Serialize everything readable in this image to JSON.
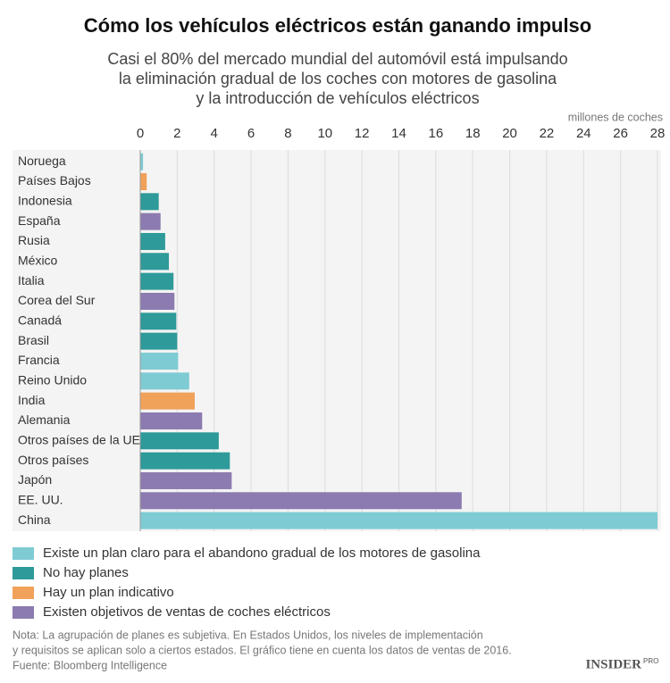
{
  "chart_data": {
    "type": "bar",
    "orientation": "horizontal",
    "title": "Cómo los vehículos eléctricos están ganando impulso",
    "subtitle": [
      "Casi el 80% del mercado mundial del automóvil está impulsando",
      "la eliminación gradual de los coches con motores de gasolina",
      "y la introducción de vehículos eléctricos"
    ],
    "x_label": "millones de coches",
    "categories": [
      "Noruega",
      "Países Bajos",
      "Indonesia",
      "España",
      "Rusia",
      "México",
      "Italia",
      "Corea del Sur",
      "Canadá",
      "Brasil",
      "Francia",
      "Reino Unido",
      "India",
      "Alemania",
      "Otros países de la UE",
      "Otros países",
      "Japón",
      "EE. UU.",
      "China"
    ],
    "series": [
      {
        "name": "Existe un plan claro para el abandono gradual de los motores de gasolina",
        "color": "#7ecbd3",
        "values": [
          0.15,
          null,
          null,
          null,
          null,
          null,
          null,
          null,
          null,
          null,
          2.05,
          2.65,
          null,
          null,
          null,
          null,
          null,
          null,
          28
        ]
      },
      {
        "name": "No hay planes",
        "color": "#2e9a99",
        "values": [
          null,
          null,
          1.0,
          null,
          1.35,
          1.55,
          1.8,
          null,
          1.95,
          2.0,
          null,
          null,
          null,
          null,
          4.25,
          4.85,
          null,
          null,
          null
        ]
      },
      {
        "name": "Hay un plan indicativo",
        "color": "#f0a15a",
        "values": [
          null,
          0.35,
          null,
          null,
          null,
          null,
          null,
          null,
          null,
          null,
          null,
          null,
          2.95,
          null,
          null,
          null,
          null,
          null,
          null
        ]
      },
      {
        "name": "Existen objetivos de ventas de coches eléctricos",
        "color": "#8c7bb0",
        "values": [
          null,
          null,
          null,
          1.1,
          null,
          null,
          null,
          1.85,
          null,
          null,
          null,
          null,
          null,
          3.35,
          null,
          null,
          4.95,
          17.4,
          null
        ]
      }
    ],
    "xlim": [
      0,
      28
    ],
    "xticks": [
      0,
      2,
      4,
      6,
      8,
      10,
      12,
      14,
      16,
      18,
      20,
      22,
      24,
      26,
      28
    ],
    "grid": true,
    "notes": [
      "Nota: La agrupación de planes es subjetiva. En Estados Unidos, los niveles de implementación",
      "y requisitos se aplican solo a ciertos estados. El gráfico tiene en cuenta los datos de ventas de 2016.",
      "Fuente: Bloomberg Intelligence"
    ],
    "brand": "INSIDER",
    "brand_suffix": "PRO"
  }
}
